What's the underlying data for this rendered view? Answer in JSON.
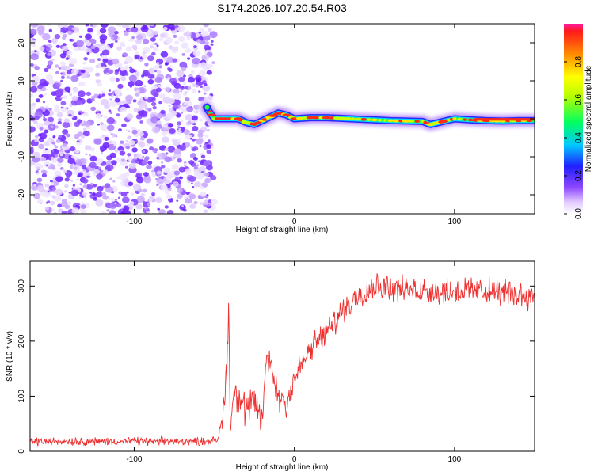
{
  "title": "S174.2026.107.20.54.R03",
  "chart_data": [
    {
      "type": "heatmap",
      "title": "S174.2026.107.20.54.R03",
      "xlabel": "Height of straight line (km)",
      "ylabel": "Frequency (Hz)",
      "xlim": [
        -165,
        150
      ],
      "ylim": [
        -25,
        25
      ],
      "xticks": [
        -100,
        0,
        100
      ],
      "yticks": [
        -20,
        -10,
        0,
        10,
        20
      ],
      "noise_region_x": [
        -165,
        -55
      ],
      "signal_ridge": {
        "x": [
          -55,
          -50,
          -45,
          -40,
          -35,
          -30,
          -25,
          -20,
          -15,
          -10,
          -5,
          0,
          10,
          20,
          30,
          40,
          50,
          60,
          70,
          80,
          85,
          90,
          95,
          100,
          110,
          120,
          130,
          140,
          150
        ],
        "freq": [
          3,
          0,
          0,
          0,
          0,
          -1,
          -1.5,
          -0.5,
          0.5,
          1.5,
          1,
          0,
          0.3,
          0.3,
          0.1,
          -0.1,
          -0.3,
          -0.5,
          -0.6,
          -0.7,
          -1.5,
          -1,
          -0.5,
          0,
          -0.3,
          -0.5,
          -0.6,
          -0.5,
          -0.5
        ]
      },
      "colorbar": {
        "label": "Normalized spectral amplitude",
        "range": [
          0,
          1
        ],
        "ticks": [
          0.0,
          0.2,
          0.4,
          0.6,
          0.8
        ]
      }
    },
    {
      "type": "line",
      "xlabel": "Height of straight line (km)",
      "ylabel": "SNR (10 * v/v)",
      "xlim": [
        -165,
        150
      ],
      "ylim": [
        0,
        345
      ],
      "xticks": [
        -100,
        0,
        100
      ],
      "yticks": [
        0,
        100,
        200,
        300
      ],
      "series": [
        {
          "name": "SNR",
          "color": "#ee3030",
          "x": [
            -165,
            -150,
            -120,
            -90,
            -60,
            -48,
            -45,
            -43,
            -42,
            -41,
            -40,
            -38,
            -35,
            -30,
            -25,
            -20,
            -18,
            -15,
            -12,
            -10,
            -5,
            0,
            5,
            10,
            20,
            30,
            40,
            50,
            60,
            70,
            80,
            90,
            100,
            110,
            120,
            130,
            140,
            150
          ],
          "y": [
            18,
            18,
            18,
            18,
            18,
            20,
            60,
            120,
            160,
            270,
            40,
            110,
            100,
            70,
            90,
            55,
            150,
            170,
            120,
            100,
            90,
            130,
            160,
            185,
            215,
            255,
            285,
            300,
            298,
            292,
            293,
            290,
            291,
            292,
            290,
            288,
            285,
            282
          ]
        }
      ]
    }
  ]
}
